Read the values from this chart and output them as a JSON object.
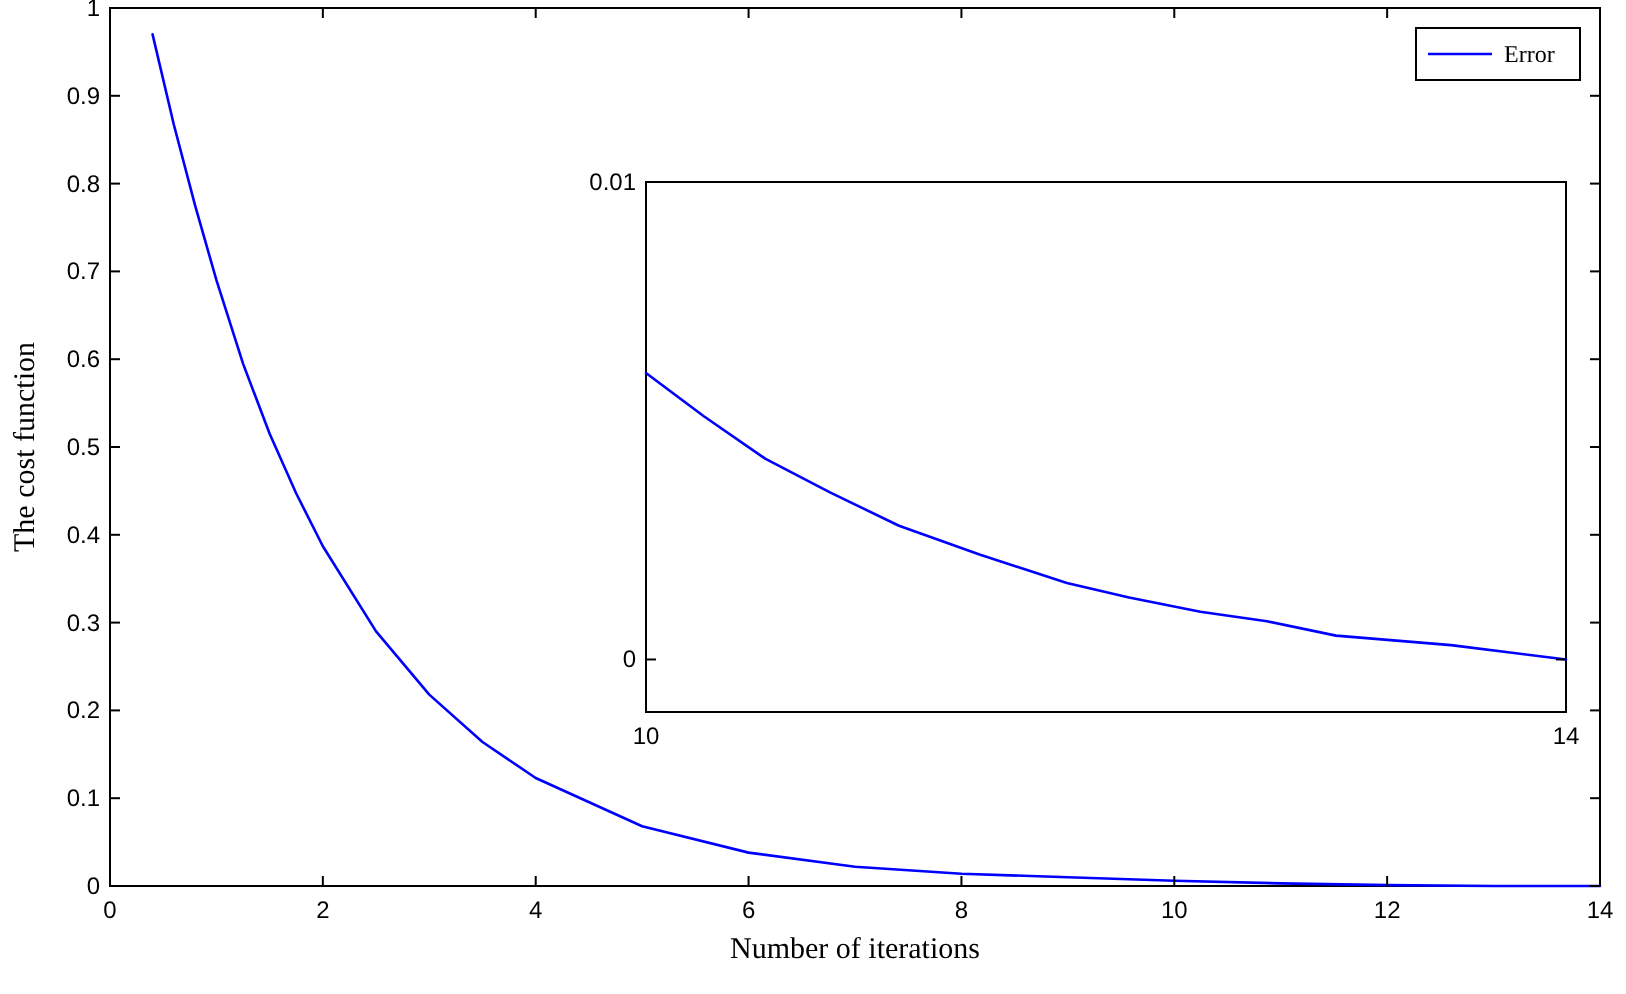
{
  "chart_data": [
    {
      "type": "line",
      "xlabel": "Number of iterations",
      "ylabel": "The cost function",
      "xlim": [
        0,
        14
      ],
      "ylim": [
        0,
        1
      ],
      "xticks": [
        0,
        2,
        4,
        6,
        8,
        10,
        12,
        14
      ],
      "yticks": [
        0,
        0.1,
        0.2,
        0.3,
        0.4,
        0.5,
        0.6,
        0.7,
        0.8,
        0.9,
        1
      ],
      "legend": "top right",
      "grid": false,
      "x": [
        0.4,
        0.6,
        0.8,
        1,
        1.25,
        1.5,
        1.75,
        2,
        2.5,
        3,
        3.5,
        4,
        5,
        6,
        7,
        8,
        9,
        10,
        11,
        12,
        13,
        14
      ],
      "series": [
        {
          "name": "Error",
          "color": "#0000ff",
          "values": [
            0.97,
            0.867,
            0.775,
            0.69,
            0.595,
            0.515,
            0.447,
            0.387,
            0.29,
            0.218,
            0.164,
            0.123,
            0.068,
            0.038,
            0.022,
            0.014,
            0.01,
            0.006,
            0.003,
            0.001,
            0,
            0
          ]
        }
      ]
    },
    {
      "type": "line",
      "xlim": [
        10,
        14
      ],
      "ylim": [
        -0.0011,
        0.01
      ],
      "xticks": [
        10,
        14
      ],
      "yticks": [
        0,
        0.01
      ],
      "grid": false,
      "x": [
        10,
        10.25,
        10.52,
        10.8,
        11.1,
        11.45,
        11.83,
        12.1,
        12.41,
        12.7,
        13,
        13.5,
        14
      ],
      "series": [
        {
          "color": "#0000ff",
          "values": [
            0.006,
            0.0051,
            0.0042,
            0.0035,
            0.0028,
            0.0022,
            0.0016,
            0.0013,
            0.001,
            0.0008,
            0.0005,
            0.0003,
            0
          ]
        }
      ]
    }
  ]
}
